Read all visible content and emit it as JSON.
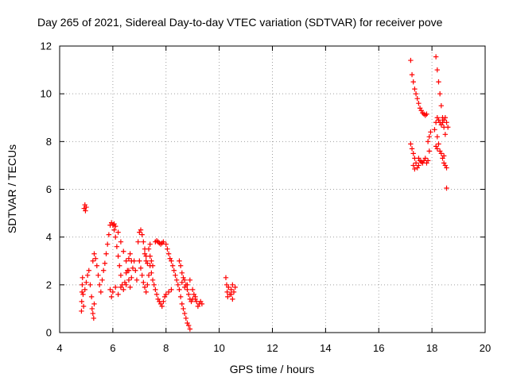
{
  "chart_data": {
    "type": "scatter",
    "title": "Day 265 of 2021, Sidereal Day-to-day VTEC variation (SDTVAR) for receiver pove",
    "xlabel": "GPS time / hours",
    "ylabel": "SDTVAR / TECUs",
    "xlim": [
      4,
      20
    ],
    "ylim": [
      0,
      12
    ],
    "xticks": [
      "4",
      "6",
      "8",
      "10",
      "12",
      "14",
      "16",
      "18",
      "20"
    ],
    "yticks": [
      "0",
      "2",
      "4",
      "6",
      "8",
      "10",
      "12"
    ],
    "grid": true,
    "marker": "+",
    "series": [
      {
        "name": "SDTVAR",
        "color": "#ff0000",
        "points": [
          [
            4.82,
            0.9
          ],
          [
            4.83,
            1.3
          ],
          [
            4.84,
            1.7
          ],
          [
            4.85,
            2.0
          ],
          [
            4.86,
            2.3
          ],
          [
            4.88,
            1.6
          ],
          [
            4.9,
            1.1
          ],
          [
            4.92,
            5.2
          ],
          [
            4.95,
            5.35
          ],
          [
            4.97,
            5.1
          ],
          [
            5.0,
            5.25
          ],
          [
            4.95,
            1.8
          ],
          [
            5.0,
            2.1
          ],
          [
            5.05,
            2.4
          ],
          [
            5.1,
            2.6
          ],
          [
            5.15,
            2.0
          ],
          [
            5.2,
            1.5
          ],
          [
            5.22,
            1.0
          ],
          [
            5.25,
            0.8
          ],
          [
            5.28,
            0.6
          ],
          [
            5.3,
            1.2
          ],
          [
            5.25,
            3.0
          ],
          [
            5.3,
            3.3
          ],
          [
            5.35,
            3.1
          ],
          [
            5.4,
            2.8
          ],
          [
            5.45,
            2.4
          ],
          [
            5.5,
            2.0
          ],
          [
            5.55,
            1.7
          ],
          [
            5.6,
            2.2
          ],
          [
            5.65,
            2.6
          ],
          [
            5.7,
            2.9
          ],
          [
            5.75,
            3.3
          ],
          [
            5.8,
            3.7
          ],
          [
            5.85,
            4.1
          ],
          [
            5.9,
            4.5
          ],
          [
            5.95,
            4.6
          ],
          [
            6.0,
            4.5
          ],
          [
            6.05,
            4.3
          ],
          [
            6.1,
            4.0
          ],
          [
            6.15,
            3.6
          ],
          [
            6.2,
            3.2
          ],
          [
            6.25,
            2.8
          ],
          [
            6.3,
            2.4
          ],
          [
            6.35,
            2.0
          ],
          [
            6.4,
            1.8
          ],
          [
            6.45,
            2.1
          ],
          [
            6.5,
            2.5
          ],
          [
            5.9,
            1.8
          ],
          [
            5.95,
            1.5
          ],
          [
            6.0,
            1.7
          ],
          [
            6.1,
            1.9
          ],
          [
            6.2,
            1.6
          ],
          [
            6.3,
            1.9
          ],
          [
            6.05,
            4.55
          ],
          [
            6.1,
            4.45
          ],
          [
            6.2,
            4.2
          ],
          [
            6.3,
            3.8
          ],
          [
            6.4,
            3.4
          ],
          [
            6.5,
            3.0
          ],
          [
            6.55,
            2.6
          ],
          [
            6.6,
            2.2
          ],
          [
            6.65,
            1.9
          ],
          [
            6.7,
            2.3
          ],
          [
            6.75,
            2.7
          ],
          [
            6.8,
            3.0
          ],
          [
            6.85,
            2.6
          ],
          [
            6.9,
            2.2
          ],
          [
            6.6,
            3.1
          ],
          [
            6.65,
            3.3
          ],
          [
            6.7,
            3.0
          ],
          [
            6.6,
            2.6
          ],
          [
            6.5,
            2.0
          ],
          [
            6.95,
            3.8
          ],
          [
            7.0,
            4.2
          ],
          [
            7.05,
            4.3
          ],
          [
            7.1,
            4.1
          ],
          [
            7.15,
            3.8
          ],
          [
            7.2,
            3.5
          ],
          [
            7.25,
            3.2
          ],
          [
            7.3,
            2.9
          ],
          [
            7.0,
            3.0
          ],
          [
            7.05,
            2.7
          ],
          [
            7.1,
            2.4
          ],
          [
            7.15,
            2.1
          ],
          [
            7.2,
            1.9
          ],
          [
            7.25,
            1.7
          ],
          [
            7.3,
            2.0
          ],
          [
            7.35,
            2.4
          ],
          [
            7.4,
            2.8
          ],
          [
            7.45,
            2.5
          ],
          [
            7.5,
            2.2
          ],
          [
            7.55,
            2.0
          ],
          [
            7.6,
            1.8
          ],
          [
            7.65,
            1.6
          ],
          [
            7.7,
            1.4
          ],
          [
            7.75,
            1.3
          ],
          [
            7.8,
            1.2
          ],
          [
            7.85,
            1.1
          ],
          [
            7.9,
            1.3
          ],
          [
            7.95,
            1.5
          ],
          [
            8.0,
            1.6
          ],
          [
            8.1,
            1.7
          ],
          [
            8.2,
            1.8
          ],
          [
            7.35,
            3.5
          ],
          [
            7.4,
            3.2
          ],
          [
            7.45,
            3.0
          ],
          [
            7.5,
            2.8
          ],
          [
            7.2,
            3.3
          ],
          [
            7.25,
            3.0
          ],
          [
            7.4,
            3.7
          ],
          [
            7.6,
            3.8
          ],
          [
            7.65,
            3.85
          ],
          [
            7.7,
            3.8
          ],
          [
            7.75,
            3.75
          ],
          [
            7.8,
            3.7
          ],
          [
            7.85,
            3.75
          ],
          [
            7.9,
            3.8
          ],
          [
            8.0,
            3.7
          ],
          [
            8.05,
            3.5
          ],
          [
            8.1,
            3.3
          ],
          [
            8.15,
            3.1
          ],
          [
            8.2,
            3.0
          ],
          [
            8.25,
            2.8
          ],
          [
            8.3,
            2.6
          ],
          [
            8.35,
            2.4
          ],
          [
            8.4,
            2.2
          ],
          [
            8.45,
            2.0
          ],
          [
            8.5,
            1.8
          ],
          [
            8.55,
            1.5
          ],
          [
            8.6,
            1.2
          ],
          [
            8.65,
            1.0
          ],
          [
            8.7,
            0.8
          ],
          [
            8.75,
            0.6
          ],
          [
            8.8,
            0.4
          ],
          [
            8.85,
            0.3
          ],
          [
            8.9,
            0.15
          ],
          [
            8.5,
            3.0
          ],
          [
            8.55,
            2.8
          ],
          [
            8.6,
            2.5
          ],
          [
            8.65,
            2.3
          ],
          [
            8.7,
            2.2
          ],
          [
            8.75,
            2.0
          ],
          [
            8.8,
            1.8
          ],
          [
            8.85,
            1.6
          ],
          [
            8.9,
            1.4
          ],
          [
            8.95,
            1.3
          ],
          [
            9.0,
            1.4
          ],
          [
            9.05,
            1.6
          ],
          [
            9.1,
            1.5
          ],
          [
            9.15,
            1.3
          ],
          [
            9.2,
            1.1
          ],
          [
            9.25,
            1.2
          ],
          [
            9.3,
            1.3
          ],
          [
            9.35,
            1.2
          ],
          [
            8.6,
            2.1
          ],
          [
            8.7,
            1.9
          ],
          [
            8.8,
            2.0
          ],
          [
            8.9,
            2.2
          ],
          [
            9.0,
            1.8
          ],
          [
            9.1,
            1.4
          ],
          [
            10.25,
            2.3
          ],
          [
            10.28,
            2.0
          ],
          [
            10.3,
            1.7
          ],
          [
            10.32,
            1.5
          ],
          [
            10.35,
            1.9
          ],
          [
            10.4,
            1.6
          ],
          [
            10.45,
            1.8
          ],
          [
            10.5,
            2.0
          ],
          [
            10.55,
            1.7
          ],
          [
            10.6,
            1.9
          ],
          [
            10.5,
            1.4
          ],
          [
            10.45,
            1.6
          ],
          [
            17.2,
            11.4
          ],
          [
            17.25,
            10.8
          ],
          [
            17.3,
            10.5
          ],
          [
            17.35,
            10.2
          ],
          [
            17.4,
            10.0
          ],
          [
            17.45,
            9.8
          ],
          [
            17.5,
            9.6
          ],
          [
            17.55,
            9.4
          ],
          [
            17.6,
            9.3
          ],
          [
            17.65,
            9.2
          ],
          [
            17.7,
            9.15
          ],
          [
            17.75,
            9.1
          ],
          [
            17.8,
            9.15
          ],
          [
            17.2,
            7.9
          ],
          [
            17.25,
            7.7
          ],
          [
            17.3,
            7.5
          ],
          [
            17.35,
            7.3
          ],
          [
            17.4,
            7.1
          ],
          [
            17.45,
            6.9
          ],
          [
            17.5,
            7.0
          ],
          [
            17.3,
            7.0
          ],
          [
            17.35,
            6.85
          ],
          [
            17.5,
            7.3
          ],
          [
            17.55,
            7.2
          ],
          [
            17.6,
            7.15
          ],
          [
            17.65,
            7.1
          ],
          [
            17.7,
            7.2
          ],
          [
            17.75,
            7.3
          ],
          [
            17.8,
            7.1
          ],
          [
            17.85,
            7.2
          ],
          [
            17.9,
            7.6
          ],
          [
            17.85,
            8.0
          ],
          [
            17.9,
            8.2
          ],
          [
            17.95,
            8.4
          ],
          [
            18.15,
            11.55
          ],
          [
            18.2,
            11.0
          ],
          [
            18.25,
            10.5
          ],
          [
            18.3,
            10.0
          ],
          [
            18.35,
            9.5
          ],
          [
            18.4,
            9.0
          ],
          [
            18.45,
            8.6
          ],
          [
            18.5,
            8.3
          ],
          [
            18.5,
            9.0
          ],
          [
            18.45,
            8.9
          ],
          [
            18.4,
            8.8
          ],
          [
            18.35,
            8.7
          ],
          [
            18.3,
            8.8
          ],
          [
            18.25,
            8.9
          ],
          [
            18.2,
            9.0
          ],
          [
            18.15,
            8.8
          ],
          [
            18.1,
            8.5
          ],
          [
            18.2,
            8.2
          ],
          [
            18.25,
            7.9
          ],
          [
            18.3,
            7.6
          ],
          [
            18.35,
            7.5
          ],
          [
            18.4,
            7.3
          ],
          [
            18.45,
            7.1
          ],
          [
            18.5,
            7.0
          ],
          [
            18.55,
            6.9
          ],
          [
            18.55,
            6.05
          ],
          [
            18.45,
            7.4
          ],
          [
            18.2,
            7.7
          ],
          [
            18.15,
            7.8
          ],
          [
            18.55,
            8.8
          ],
          [
            18.6,
            8.6
          ]
        ]
      }
    ]
  }
}
